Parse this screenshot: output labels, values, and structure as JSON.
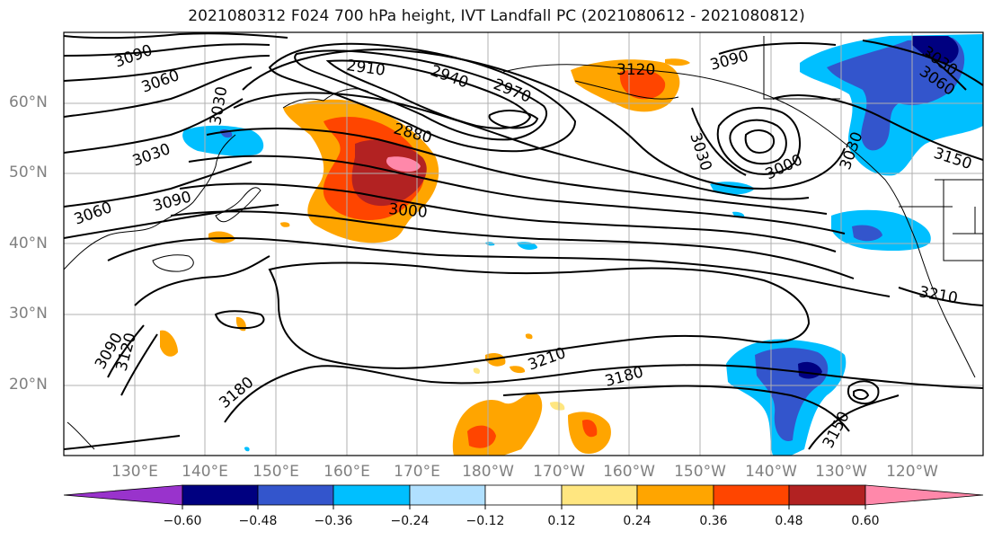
{
  "title": "2021080312 F024 700 hPa height, IVT Landfall PC (2021080612 - 2021080812)",
  "latitude_labels": [
    "60°N",
    "50°N",
    "40°N",
    "30°N",
    "20°N"
  ],
  "longitude_labels": [
    "130°E",
    "140°E",
    "150°E",
    "160°E",
    "170°E",
    "180°W",
    "170°W",
    "160°W",
    "150°W",
    "140°W",
    "130°W",
    "120°W"
  ],
  "contour_labels": [
    "3090",
    "3060",
    "3030",
    "2910",
    "2940",
    "2970",
    "3120",
    "3090",
    "3060",
    "3030",
    "2880",
    "3030",
    "3000",
    "3030",
    "3150",
    "3030",
    "3060",
    "3090",
    "3000",
    "3210",
    "3090",
    "3120",
    "3180",
    "3210",
    "3180",
    "3150"
  ],
  "colorbar": {
    "ticks": [
      "−0.60",
      "−0.48",
      "−0.36",
      "−0.24",
      "−0.12",
      "0.12",
      "0.24",
      "0.36",
      "0.48",
      "0.60"
    ],
    "colors": [
      "#9933cc",
      "#000080",
      "#3355cc",
      "#00bfff",
      "#b0e0ff",
      "#ffffff",
      "#ffe680",
      "#ffa500",
      "#ff4500",
      "#b22222",
      "#ff88aa"
    ]
  }
}
